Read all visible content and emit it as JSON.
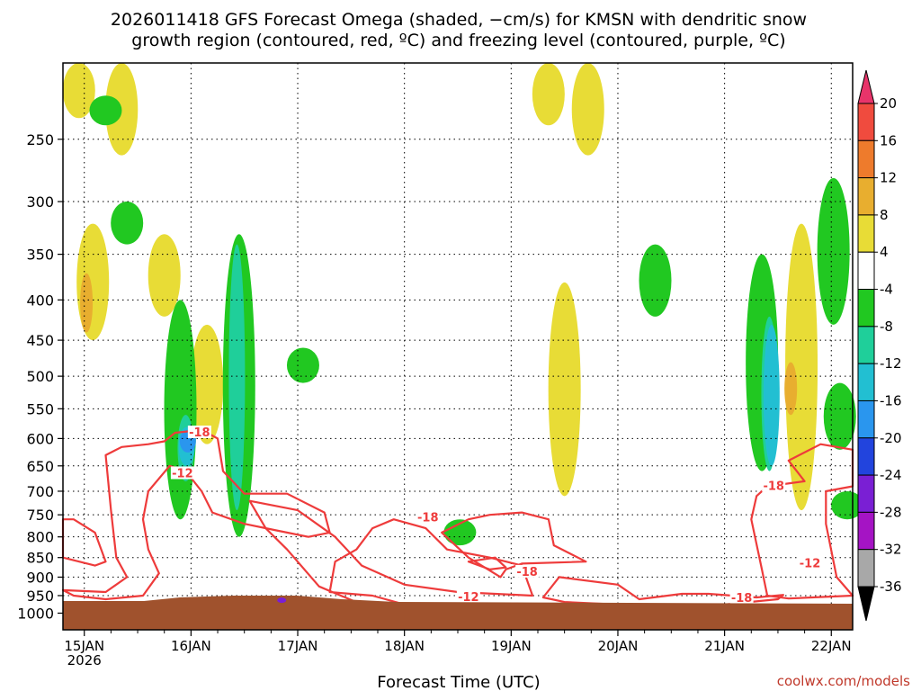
{
  "title_line1": "2026011418 GFS Forecast Omega (shaded, −cm/s) for KMSN with dendritic snow",
  "title_line2": "growth region (contoured, red, ºC) and freezing level (contoured, purple, ºC)",
  "credit": "coolwx.com/models",
  "chart_data": {
    "type": "heatmap",
    "title": "2026011418 GFS Forecast Omega (shaded, −cm/s) for KMSN with dendritic snow growth region (contoured, red, ºC) and freezing level (contoured, purple, ºC)",
    "xlabel": "Forecast Time (UTC)",
    "ylabel": "",
    "y_axis": {
      "scale": "log",
      "inverted": true,
      "range": [
        200,
        1050
      ],
      "ticks": [
        250,
        300,
        350,
        400,
        450,
        500,
        550,
        600,
        650,
        700,
        750,
        800,
        850,
        900,
        950,
        1000
      ]
    },
    "x_axis": {
      "range_days": [
        "15JAN 2026 00Z - 0.2",
        "22JAN 2026 00Z + 0.2"
      ],
      "ticks": [
        {
          "label": "15JAN",
          "sublabel": "2026",
          "day": 0
        },
        {
          "label": "16JAN",
          "day": 1
        },
        {
          "label": "17JAN",
          "day": 2
        },
        {
          "label": "18JAN",
          "day": 3
        },
        {
          "label": "19JAN",
          "day": 4
        },
        {
          "label": "20JAN",
          "day": 5
        },
        {
          "label": "21JAN",
          "day": 6
        },
        {
          "label": "22JAN",
          "day": 7
        }
      ]
    },
    "grid": true,
    "colorbar": {
      "placement": "right",
      "levels": [
        20,
        16,
        12,
        8,
        4,
        -4,
        -8,
        -12,
        -16,
        -20,
        -24,
        -28,
        -32,
        -36
      ],
      "colors": [
        "#e8346a",
        "#f04b3e",
        "#ee7b2c",
        "#e8ae2f",
        "#e8dc36",
        "#ffffff",
        "#21c821",
        "#1fcf9a",
        "#22bfd2",
        "#2a96ee",
        "#2244dd",
        "#7a1fd4",
        "#a514c4",
        "#a8a8a8",
        "#000000"
      ]
    },
    "contour_labels": [
      {
        "text": "-18",
        "day": 1.08,
        "p": 590
      },
      {
        "text": "-12",
        "day": 0.92,
        "p": 665
      },
      {
        "text": "-18",
        "day": 3.22,
        "p": 757
      },
      {
        "text": "-18",
        "day": 4.15,
        "p": 887
      },
      {
        "text": "-12",
        "day": 3.6,
        "p": 955
      },
      {
        "text": "-18",
        "day": 6.46,
        "p": 690
      },
      {
        "text": "-12",
        "day": 6.8,
        "p": 865
      },
      {
        "text": "-18",
        "day": 6.16,
        "p": 957
      }
    ],
    "omega_regions": [
      {
        "level": 4,
        "day": -0.05,
        "p1": 200,
        "p2": 235
      },
      {
        "level": 4,
        "day": 0.35,
        "p1": 200,
        "p2": 262
      },
      {
        "level": 4,
        "day": 0.08,
        "p1": 320,
        "p2": 450
      },
      {
        "level": 4,
        "day": 0.75,
        "p1": 330,
        "p2": 420
      },
      {
        "level": 4,
        "day": 4.35,
        "p1": 200,
        "p2": 240
      },
      {
        "level": 4,
        "day": 4.72,
        "p1": 200,
        "p2": 262
      },
      {
        "level": 4,
        "day": 4.5,
        "p1": 380,
        "p2": 710
      },
      {
        "level": 4,
        "day": 6.72,
        "p1": 320,
        "p2": 740
      },
      {
        "level": 4,
        "day": 1.15,
        "p1": 430,
        "p2": 610
      },
      {
        "level": -4,
        "day": 0.2,
        "p1": 220,
        "p2": 240
      },
      {
        "level": -4,
        "day": 0.4,
        "p1": 300,
        "p2": 340
      },
      {
        "level": -4,
        "day": 0.9,
        "p1": 400,
        "p2": 760
      },
      {
        "level": -4,
        "day": 1.45,
        "p1": 330,
        "p2": 800
      },
      {
        "level": -4,
        "day": 2.05,
        "p1": 460,
        "p2": 510
      },
      {
        "level": -4,
        "day": 3.52,
        "p1": 760,
        "p2": 820
      },
      {
        "level": -4,
        "day": 5.35,
        "p1": 340,
        "p2": 420
      },
      {
        "level": -4,
        "day": 6.35,
        "p1": 350,
        "p2": 660
      },
      {
        "level": -4,
        "day": 7.02,
        "p1": 280,
        "p2": 430
      },
      {
        "level": -4,
        "day": 7.08,
        "p1": 510,
        "p2": 620
      },
      {
        "level": -4,
        "day": 7.15,
        "p1": 700,
        "p2": 760
      },
      {
        "level": -8,
        "day": 1.43,
        "p1": 340,
        "p2": 740
      },
      {
        "level": -8,
        "day": 0.95,
        "p1": 560,
        "p2": 680
      },
      {
        "level": -8,
        "day": 6.42,
        "p1": 420,
        "p2": 660
      },
      {
        "level": -12,
        "day": 0.96,
        "p1": 580,
        "p2": 650
      },
      {
        "level": -12,
        "day": 6.44,
        "p1": 430,
        "p2": 650
      },
      {
        "level": -16,
        "day": 0.97,
        "p1": 585,
        "p2": 625
      },
      {
        "level": 8,
        "day": 0.02,
        "p1": 370,
        "p2": 440
      },
      {
        "level": 8,
        "day": 6.62,
        "p1": 480,
        "p2": 560
      }
    ],
    "freezing_level_marks": [
      {
        "day": 1.85,
        "p": 958
      }
    ]
  }
}
